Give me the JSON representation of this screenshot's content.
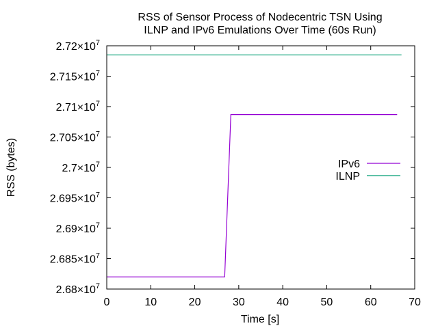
{
  "chart_data": {
    "type": "line",
    "title_lines": [
      "RSS of Sensor Process of Nodecentric TSN Using",
      "ILNP and IPv6 Emulations Over Time (60s Run)"
    ],
    "xlabel": "Time [s]",
    "ylabel": "RSS (bytes)",
    "xlim": [
      0,
      70
    ],
    "ylim": [
      26800000,
      27200000
    ],
    "x_ticks": [
      0,
      10,
      20,
      30,
      40,
      50,
      60,
      70
    ],
    "x_tick_labels": [
      "0",
      "10",
      "20",
      "30",
      "40",
      "50",
      "60",
      "70"
    ],
    "y_ticks": [
      {
        "value": 26800000,
        "mantissa": "2.68"
      },
      {
        "value": 26850000,
        "mantissa": "2.685"
      },
      {
        "value": 26900000,
        "mantissa": "2.69"
      },
      {
        "value": 26950000,
        "mantissa": "2.695"
      },
      {
        "value": 27000000,
        "mantissa": "2.7"
      },
      {
        "value": 27050000,
        "mantissa": "2.705"
      },
      {
        "value": 27100000,
        "mantissa": "2.71"
      },
      {
        "value": 27150000,
        "mantissa": "2.715"
      },
      {
        "value": 27200000,
        "mantissa": "2.72"
      }
    ],
    "y_tick_multiplier": "×10",
    "y_tick_exponent": "7",
    "grid": false,
    "legend_position": "right",
    "series": [
      {
        "name": "IPv6",
        "color": "#9400d3",
        "points": [
          [
            0,
            26820000
          ],
          [
            26.8,
            26820000
          ],
          [
            28.2,
            27087000
          ],
          [
            66,
            27087000
          ]
        ]
      },
      {
        "name": "ILNP",
        "color": "#009e73",
        "points": [
          [
            0,
            27185000
          ],
          [
            67,
            27185000
          ]
        ]
      }
    ]
  }
}
